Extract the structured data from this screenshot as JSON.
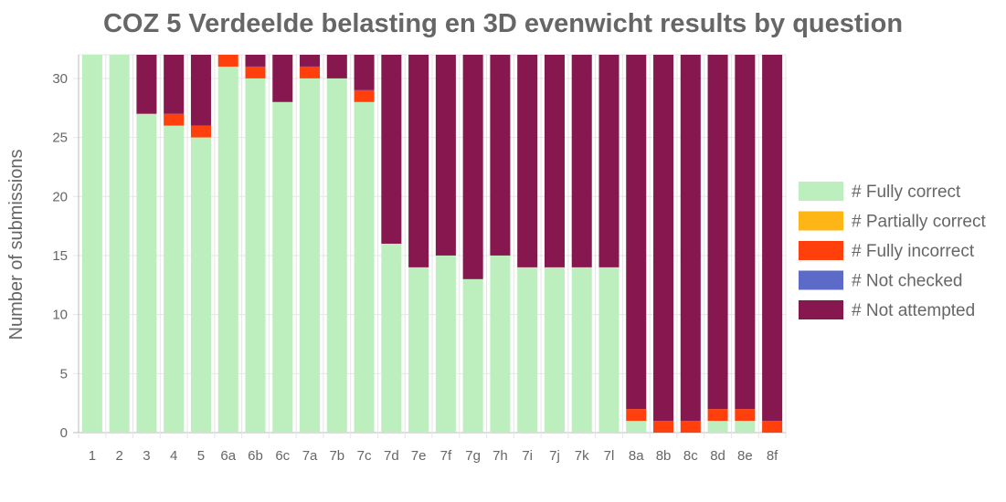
{
  "chart_data": {
    "type": "bar",
    "stacked": true,
    "title": "COZ 5 Verdeelde belasting en 3D evenwicht results by question",
    "xlabel": "",
    "ylabel": "Number of submissions",
    "ylim": [
      0,
      32
    ],
    "yticks": [
      0,
      5,
      10,
      15,
      20,
      25,
      30
    ],
    "grid": true,
    "legend_position": "right",
    "categories": [
      "1",
      "2",
      "3",
      "4",
      "5",
      "6a",
      "6b",
      "6c",
      "7a",
      "7b",
      "7c",
      "7d",
      "7e",
      "7f",
      "7g",
      "7h",
      "7i",
      "7j",
      "7k",
      "7l",
      "8a",
      "8b",
      "8c",
      "8d",
      "8e",
      "8f"
    ],
    "series": [
      {
        "name": "# Fully correct",
        "color": "#bcefbd",
        "values": [
          32,
          32,
          27,
          26,
          25,
          31,
          30,
          28,
          30,
          30,
          28,
          16,
          14,
          15,
          13,
          15,
          14,
          14,
          14,
          14,
          1,
          0,
          0,
          1,
          1,
          0
        ]
      },
      {
        "name": "# Partially correct",
        "color": "#fdb616",
        "values": [
          0,
          0,
          0,
          0,
          0,
          0,
          0,
          0,
          0,
          0,
          0,
          0,
          0,
          0,
          0,
          0,
          0,
          0,
          0,
          0,
          0,
          0,
          0,
          0,
          0,
          0
        ]
      },
      {
        "name": "# Fully incorrect",
        "color": "#ff3f0c",
        "values": [
          0,
          0,
          0,
          1,
          1,
          1,
          1,
          0,
          1,
          0,
          1,
          0,
          0,
          0,
          0,
          0,
          0,
          0,
          0,
          0,
          1,
          1,
          1,
          1,
          1,
          1
        ]
      },
      {
        "name": "# Not checked",
        "color": "#5c6bc8",
        "values": [
          0,
          0,
          0,
          0,
          0,
          0,
          0,
          0,
          0,
          0,
          0,
          0,
          0,
          0,
          0,
          0,
          0,
          0,
          0,
          0,
          0,
          0,
          0,
          0,
          0,
          0
        ]
      },
      {
        "name": "# Not attempted",
        "color": "#87174f",
        "values": [
          0,
          0,
          5,
          5,
          6,
          0,
          1,
          4,
          1,
          2,
          3,
          16,
          18,
          17,
          19,
          17,
          18,
          18,
          18,
          18,
          30,
          31,
          31,
          30,
          30,
          31
        ]
      }
    ]
  }
}
